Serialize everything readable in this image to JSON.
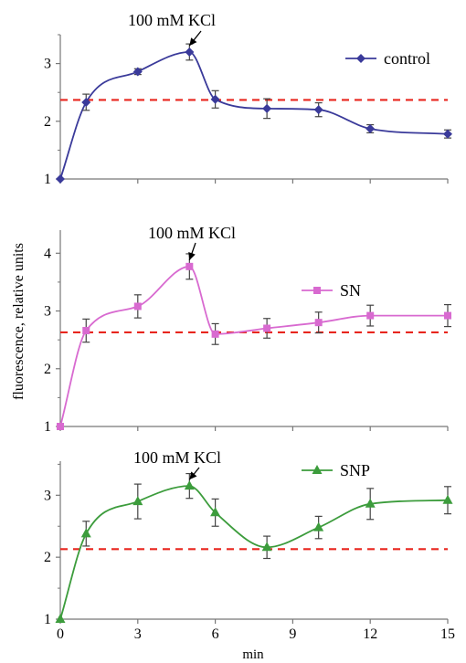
{
  "figure": {
    "ylabel": "fluorescence, relative units",
    "xlabel": "min",
    "x_ticks": [
      "0",
      "3",
      "6",
      "9",
      "12",
      "15"
    ]
  },
  "chart_data": [
    {
      "type": "line",
      "series": [
        {
          "name": "control",
          "color": "#3a3a9a",
          "marker": "diamond",
          "x": [
            0,
            1,
            3,
            5,
            6,
            8,
            10,
            12,
            15
          ],
          "y": [
            1.0,
            2.33,
            2.86,
            3.2,
            2.38,
            2.22,
            2.2,
            1.87,
            1.78
          ],
          "err": [
            0,
            0.14,
            0.05,
            0.14,
            0.15,
            0.17,
            0.12,
            0.07,
            0.07
          ]
        }
      ],
      "reference_line": {
        "y": 2.37,
        "color": "#e8261e",
        "style": "dashed"
      },
      "annotation": {
        "text": "100 mM KCl",
        "x": 5,
        "y": 3.2
      },
      "y_ticks": [
        "1",
        "2",
        "3"
      ],
      "ylim": [
        1,
        3.5
      ],
      "xlim": [
        0,
        15
      ],
      "legend_position": "top-right"
    },
    {
      "type": "line",
      "series": [
        {
          "name": "SN",
          "color": "#d86ad0",
          "marker": "square",
          "x": [
            0,
            1,
            3,
            5,
            6,
            8,
            10,
            12,
            15
          ],
          "y": [
            1.0,
            2.66,
            3.08,
            3.77,
            2.6,
            2.7,
            2.8,
            2.92,
            2.92
          ],
          "err": [
            0,
            0.2,
            0.2,
            0.22,
            0.18,
            0.17,
            0.18,
            0.18,
            0.19
          ]
        }
      ],
      "reference_line": {
        "y": 2.63,
        "color": "#e8261e",
        "style": "dashed"
      },
      "annotation": {
        "text": "100 mM KCl",
        "x": 5,
        "y": 3.77
      },
      "y_ticks": [
        "1",
        "2",
        "3",
        "4"
      ],
      "ylim": [
        1,
        4.4
      ],
      "xlim": [
        0,
        15
      ],
      "legend_position": "right"
    },
    {
      "type": "line",
      "series": [
        {
          "name": "SNP",
          "color": "#3c9c3c",
          "marker": "triangle",
          "x": [
            0,
            1,
            3,
            5,
            6,
            8,
            10,
            12,
            15
          ],
          "y": [
            1.0,
            2.38,
            2.9,
            3.15,
            2.72,
            2.16,
            2.48,
            2.86,
            2.92
          ],
          "err": [
            0,
            0.2,
            0.28,
            0.2,
            0.22,
            0.18,
            0.18,
            0.25,
            0.22
          ]
        }
      ],
      "reference_line": {
        "y": 2.13,
        "color": "#e8261e",
        "style": "dashed"
      },
      "annotation": {
        "text": "100 mM KCl",
        "x": 5,
        "y": 3.15
      },
      "y_ticks": [
        "1",
        "2",
        "3"
      ],
      "ylim": [
        1,
        3.55
      ],
      "xlim": [
        0,
        15
      ],
      "legend_position": "top-right"
    }
  ]
}
